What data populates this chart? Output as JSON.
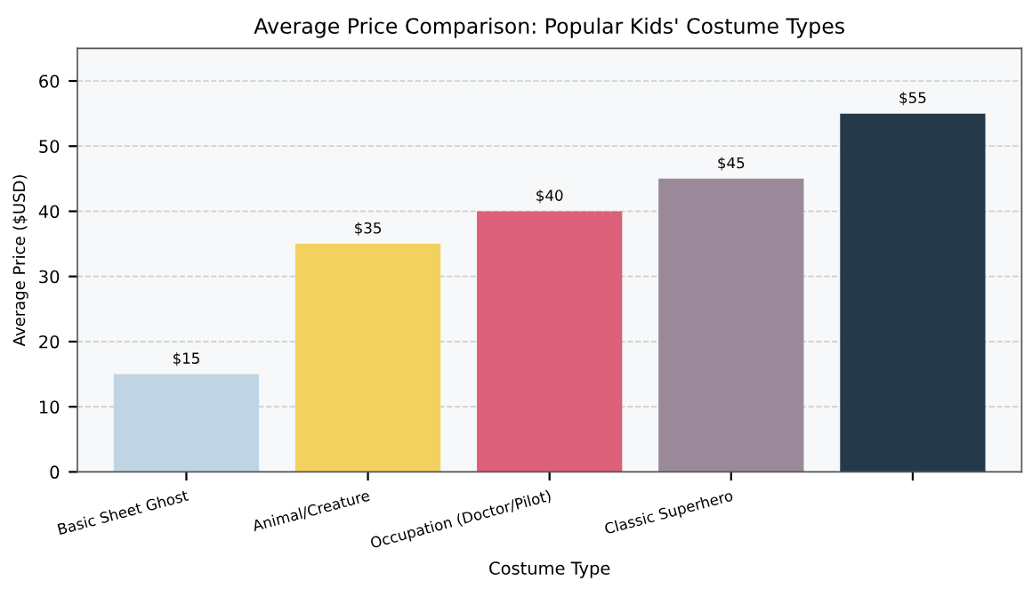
{
  "chart_data": {
    "type": "bar",
    "title": "Average Price Comparison: Popular Kids' Costume Types",
    "xlabel": "Costume Type",
    "ylabel": "Average Price ($USD)",
    "categories": [
      "Basic Sheet Ghost",
      "Animal/Creature",
      "Occupation (Doctor/Pilot)",
      "Classic Superhero",
      null
    ],
    "values": [
      15,
      35,
      40,
      45,
      55
    ],
    "colors": [
      "#bfd5e3",
      "#f2d15f",
      "#dc607a",
      "#9a8a99",
      "#243a4b"
    ],
    "value_labels": [
      "$15",
      "$35",
      "$40",
      "$45",
      "$55"
    ],
    "ylim": [
      0,
      65
    ],
    "yticks": [
      0,
      10,
      20,
      30,
      40,
      50,
      60
    ],
    "grid": "y"
  }
}
